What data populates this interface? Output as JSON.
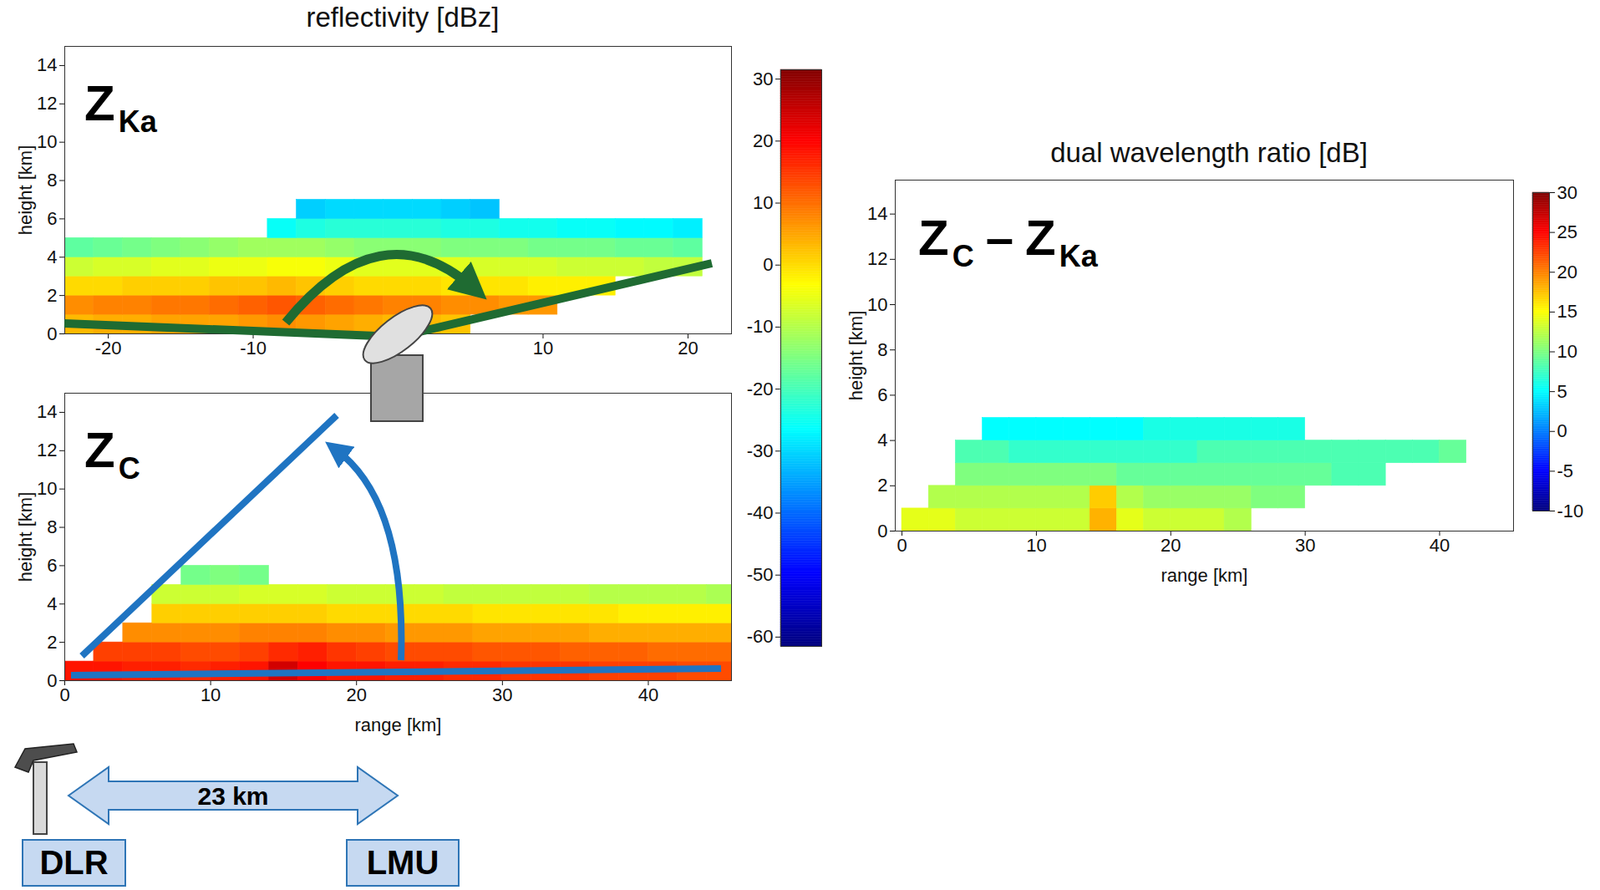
{
  "chart_data": [
    {
      "type": "heatmap",
      "title": "reflectivity [dBz]",
      "panel_label": [
        {
          "text": "Z",
          "sub": "Ka"
        }
      ],
      "y_label": "height [km]",
      "xlim": [
        -23,
        23
      ],
      "xticks": [
        -20,
        -10,
        10,
        20
      ],
      "ylim": [
        0,
        15
      ],
      "yticks": [
        0,
        2,
        4,
        6,
        8,
        10,
        12,
        14
      ],
      "x_bins": [
        -23,
        -21,
        -19,
        -17,
        -15,
        -13,
        -11,
        -9,
        -7,
        -5,
        -3,
        -1,
        1,
        3,
        5,
        7,
        9,
        11,
        13,
        15,
        17,
        19,
        21,
        23
      ],
      "y_bins": [
        0,
        1,
        2,
        3,
        4,
        5,
        6,
        7
      ],
      "cells": [
        [
          3,
          4,
          4,
          5,
          5,
          5,
          6,
          7,
          6,
          5,
          4,
          3,
          3,
          2,
          null,
          null,
          null,
          null,
          null,
          null,
          null,
          null,
          null
        ],
        [
          7,
          8,
          8,
          9,
          9,
          10,
          11,
          12,
          11,
          10,
          9,
          8,
          8,
          7,
          7,
          6,
          6,
          null,
          null,
          null,
          null,
          null,
          null
        ],
        [
          0,
          0,
          1,
          1,
          1,
          2,
          2,
          3,
          2,
          1,
          0,
          0,
          0,
          -1,
          -1,
          -1,
          -2,
          -2,
          -2,
          null,
          null,
          null,
          null
        ],
        [
          -8,
          -7,
          -7,
          -6,
          -6,
          -5,
          -5,
          -4,
          -4,
          -5,
          -6,
          -6,
          -6,
          -6,
          -7,
          -7,
          -7,
          -8,
          -8,
          -8,
          -9,
          -9,
          null
        ],
        [
          -18,
          -17,
          -16,
          -15,
          -14,
          -13,
          -12,
          -12,
          -12,
          -13,
          -14,
          -14,
          -14,
          -15,
          -15,
          -15,
          -16,
          -16,
          -16,
          -17,
          -17,
          -18,
          null
        ],
        [
          null,
          null,
          null,
          null,
          null,
          null,
          null,
          -26,
          -24,
          -23,
          -23,
          -23,
          -23,
          -24,
          -24,
          -25,
          -25,
          -26,
          -26,
          -27,
          -27,
          -28,
          null
        ],
        [
          null,
          null,
          null,
          null,
          null,
          null,
          null,
          null,
          -31,
          -30,
          -30,
          -30,
          -30,
          -31,
          -32,
          null,
          null,
          null,
          null,
          null,
          null,
          null,
          null
        ]
      ],
      "colorbar": {
        "range": [
          -61.5,
          31.5
        ],
        "ticks": [
          -60,
          -50,
          -40,
          -30,
          -20,
          -10,
          0,
          10,
          20,
          30
        ]
      }
    },
    {
      "type": "heatmap",
      "panel_label": [
        {
          "text": "Z",
          "sub": "C"
        }
      ],
      "x_label": "range [km]",
      "y_label": "height [km]",
      "xlim": [
        0,
        45.7
      ],
      "xticks": [
        0,
        10,
        20,
        30,
        40
      ],
      "ylim": [
        0,
        15
      ],
      "yticks": [
        0,
        2,
        4,
        6,
        8,
        10,
        12,
        14
      ],
      "x_bins": [
        0,
        2,
        4,
        6,
        8,
        10,
        12,
        14,
        16,
        18,
        20,
        22,
        24,
        26,
        28,
        30,
        32,
        34,
        36,
        38,
        40,
        42,
        44,
        46
      ],
      "y_bins": [
        0,
        1,
        2,
        3,
        4,
        5,
        6
      ],
      "cells": [
        [
          18,
          18,
          17,
          17,
          16,
          17,
          18,
          24,
          20,
          18,
          18,
          17,
          17,
          16,
          16,
          15,
          15,
          15,
          14,
          14,
          14,
          13,
          13
        ],
        [
          null,
          14,
          14,
          14,
          13,
          13,
          14,
          16,
          17,
          15,
          14,
          13,
          13,
          13,
          12,
          12,
          12,
          11,
          11,
          11,
          10,
          10,
          10
        ],
        [
          null,
          null,
          7,
          7,
          7,
          7,
          8,
          8,
          8,
          7,
          7,
          6,
          6,
          6,
          5,
          5,
          5,
          5,
          4,
          4,
          4,
          4,
          4
        ],
        [
          null,
          null,
          null,
          1,
          1,
          1,
          1,
          1,
          1,
          0,
          0,
          0,
          0,
          0,
          -1,
          -1,
          -1,
          -1,
          -1,
          -2,
          -2,
          -2,
          -2
        ],
        [
          null,
          null,
          null,
          -8,
          -8,
          -8,
          -7,
          -7,
          -7,
          -8,
          -8,
          -8,
          -8,
          -9,
          -9,
          -9,
          -9,
          -9,
          -10,
          -10,
          -10,
          -10,
          -11
        ],
        [
          null,
          null,
          null,
          null,
          -16,
          -15,
          -16,
          null,
          null,
          null,
          null,
          null,
          null,
          null,
          null,
          null,
          null,
          null,
          null,
          null,
          null,
          null,
          null
        ]
      ]
    },
    {
      "type": "heatmap",
      "title": "dual wavelength ratio [dB]",
      "panel_label": [
        {
          "text": "Z",
          "sub": "C"
        },
        {
          "text": "–"
        },
        {
          "text": "Z",
          "sub": "Ka"
        }
      ],
      "x_label": "range [km]",
      "y_label": "height [km]",
      "xlim": [
        -0.5,
        45.5
      ],
      "xticks": [
        0,
        10,
        20,
        30,
        40
      ],
      "ylim": [
        0,
        15.5
      ],
      "yticks": [
        0,
        2,
        4,
        6,
        8,
        10,
        12,
        14
      ],
      "x_bins": [
        0,
        2,
        4,
        6,
        8,
        10,
        12,
        14,
        16,
        18,
        20,
        22,
        24,
        26,
        28,
        30,
        32,
        34,
        36,
        38,
        40,
        42,
        44,
        46
      ],
      "y_bins": [
        0,
        1,
        2,
        3,
        4,
        5
      ],
      "cells": [
        [
          14,
          14,
          13,
          13,
          13,
          13,
          13,
          18,
          14,
          13,
          13,
          13,
          12,
          null,
          null,
          null,
          null,
          null,
          null,
          null,
          null,
          null,
          null
        ],
        [
          null,
          12,
          12,
          12,
          12,
          12,
          12,
          17,
          12,
          11,
          11,
          11,
          11,
          10,
          10,
          null,
          null,
          null,
          null,
          null,
          null,
          null,
          null
        ],
        [
          null,
          null,
          10,
          10,
          10,
          10,
          10,
          10,
          9,
          9,
          9,
          9,
          9,
          9,
          9,
          9,
          8,
          8,
          null,
          null,
          null,
          null,
          null
        ],
        [
          null,
          null,
          8,
          8,
          7,
          7,
          7,
          7,
          7,
          7,
          7,
          8,
          8,
          8,
          8,
          8,
          8,
          8,
          8,
          8,
          9,
          null,
          null
        ],
        [
          null,
          null,
          null,
          5,
          5,
          5,
          5,
          5,
          5,
          6,
          6,
          6,
          6,
          6,
          6,
          null,
          null,
          null,
          null,
          null,
          null,
          null,
          null
        ]
      ],
      "colorbar": {
        "range": [
          -10,
          30
        ],
        "ticks": [
          -10,
          -5,
          0,
          5,
          10,
          15,
          20,
          25,
          30
        ]
      }
    }
  ],
  "annotations": {
    "distance": "23 km",
    "sites": [
      "DLR",
      "LMU"
    ]
  }
}
